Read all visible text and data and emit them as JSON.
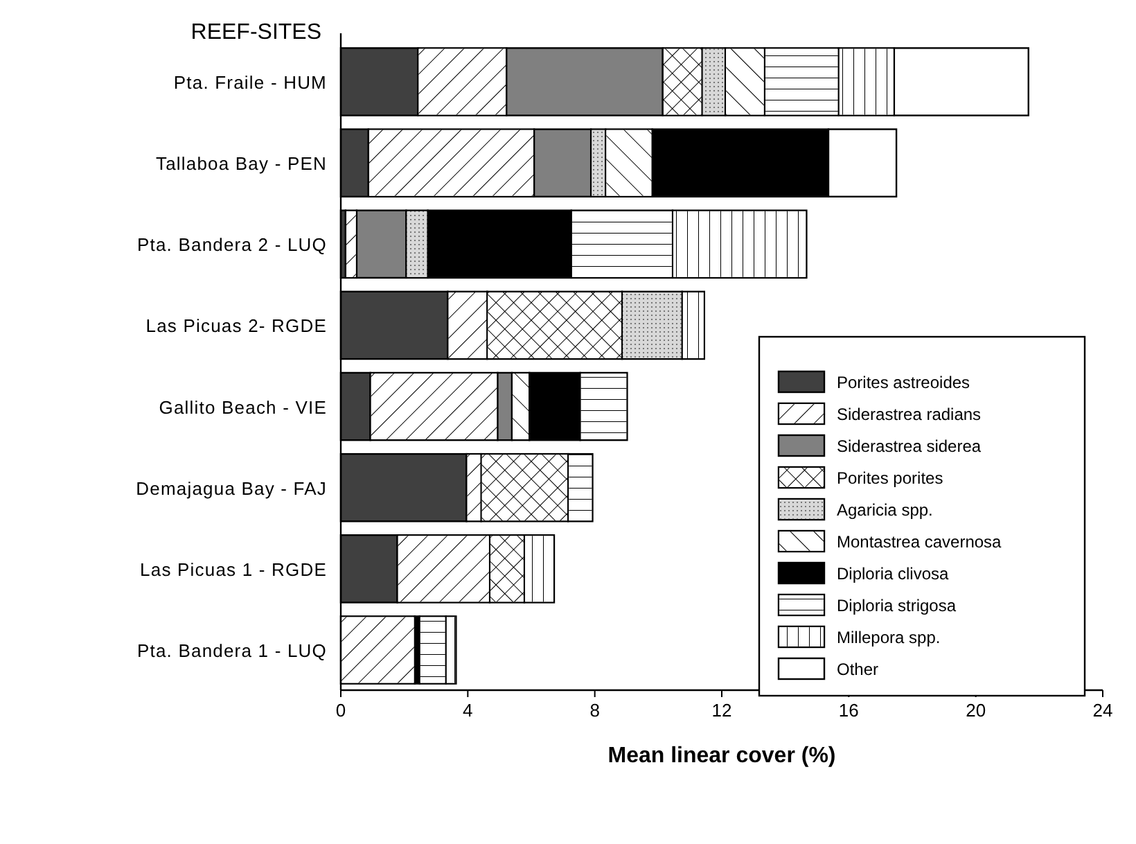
{
  "chart_data": {
    "type": "bar",
    "orientation": "horizontal",
    "stacked": true,
    "ylabel": "REEF-SITES",
    "xlabel": "Mean linear cover (%)",
    "categories": [
      "Pta. Fraile - HUM",
      "Tallaboa Bay - PEN",
      "Pta. Bandera 2 - LUQ",
      "Las Picuas 2- RGDE",
      "Gallito Beach - VIE",
      "Demajagua Bay - FAJ",
      "Las Picuas 1 - RGDE",
      "Pta. Bandera 1 - LUQ"
    ],
    "xlim": [
      0,
      24
    ],
    "xticks": [
      0,
      4,
      8,
      12,
      16,
      20,
      24
    ],
    "grid": false,
    "legend": "bottom right",
    "series": [
      {
        "name": "Porites astreoides",
        "color": "#404040",
        "values": [
          2.43,
          0.87,
          0.15,
          3.37,
          0.93,
          3.96,
          1.78,
          0
        ]
      },
      {
        "name": "Siderastrea radians",
        "color": "#ffffff",
        "values": [
          2.79,
          5.22,
          0.35,
          1.24,
          4.01,
          0.46,
          2.91,
          2.33
        ]
      },
      {
        "name": "Siderastrea siderea",
        "color": "#808080",
        "values": [
          4.92,
          1.79,
          1.56,
          0,
          0.45,
          0,
          0,
          0
        ]
      },
      {
        "name": "Porites porites",
        "color": "#ffffff",
        "values": [
          1.24,
          0,
          0,
          4.25,
          0,
          2.74,
          1.09,
          0
        ]
      },
      {
        "name": "Agaricia spp.",
        "color": "#d8d8d8",
        "values": [
          0.73,
          0.46,
          0.68,
          1.89,
          0,
          0,
          0,
          0
        ]
      },
      {
        "name": "Montastrea cavernosa",
        "color": "#ffffff",
        "values": [
          1.24,
          1.47,
          0,
          0,
          0.55,
          0,
          0,
          0
        ]
      },
      {
        "name": "Diploria clivosa",
        "color": "#000000",
        "values": [
          0,
          5.55,
          4.52,
          0,
          1.6,
          0,
          0,
          0.15
        ]
      },
      {
        "name": "Diploria strigosa",
        "color": "#ffffff",
        "values": [
          2.33,
          0,
          3.19,
          0,
          1.48,
          0.77,
          0,
          0.83
        ]
      },
      {
        "name": "Millepora spp.",
        "color": "#ffffff",
        "values": [
          1.75,
          0,
          4.22,
          0.7,
          0,
          0,
          0.94,
          0.32
        ]
      },
      {
        "name": "Other",
        "color": "#ffffff",
        "values": [
          4.23,
          2.14,
          0,
          0,
          0,
          0,
          0,
          0
        ]
      }
    ]
  }
}
